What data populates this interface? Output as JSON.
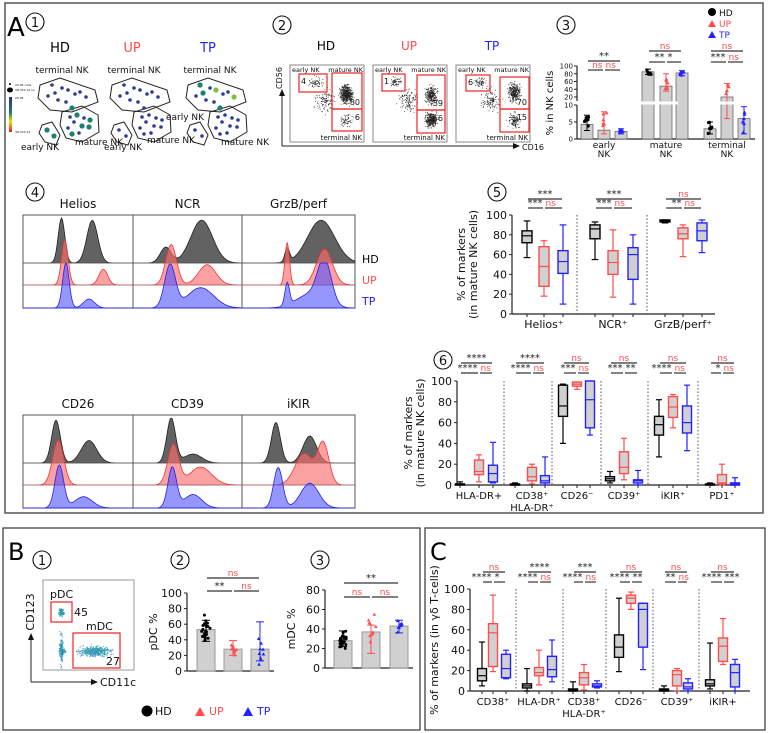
{
  "figure": {
    "panel_labels": {
      "A": "A",
      "B": "B",
      "C": "C"
    },
    "sub": {
      "1": "1",
      "2": "2",
      "3": "3",
      "4": "4",
      "5": "5",
      "6": "6"
    },
    "groups": [
      {
        "name": "HD",
        "color": "#000000"
      },
      {
        "name": "UP",
        "color": "#ff4d4d"
      },
      {
        "name": "TP",
        "color": "#2222ff"
      }
    ],
    "ns_color": "#ff4d4d"
  },
  "a1": {
    "titles": [
      "HD",
      "UP",
      "TP"
    ],
    "clusters": {
      "terminal": "terminal NK",
      "mature": "mature NK",
      "early": "early NK"
    },
    "legend": {
      "size_min": "20.95 cells",
      "size_max": "38,333.14 ns",
      "color_min": "20.95",
      "color_max": "38,333.14"
    }
  },
  "a2": {
    "titles": [
      "HD",
      "UP",
      "TP"
    ],
    "x_axis": "CD16",
    "y_axis": "CD56",
    "gate_labels": {
      "early": "early NK",
      "mature": "mature NK",
      "terminal": "terminal NK"
    },
    "gates": [
      {
        "early": "4",
        "mature": "80",
        "terminal": "6"
      },
      {
        "early": "1",
        "mature": "39",
        "terminal": "56"
      },
      {
        "early": "6",
        "mature": "70",
        "terminal": "15"
      }
    ]
  },
  "a4": {
    "top_markers": [
      "Helios",
      "NCR",
      "GrzB/perf"
    ],
    "bottom_markers": [
      "CD26",
      "CD39",
      "iKIR"
    ],
    "row_labels": [
      "HD",
      "UP",
      "TP"
    ]
  },
  "b1": {
    "y_axis": "CD123",
    "x_axis": "CD11c",
    "gate_pdc": "pDC",
    "gate_pdc_value": "45",
    "gate_mdc": "mDC",
    "gate_mdc_value": "27"
  },
  "b_legend": [
    "HD",
    "UP",
    "TP"
  ],
  "chart_data": [
    {
      "id": "A3",
      "type": "bar",
      "title": "",
      "ylabel": "% in NK cells",
      "legend": [
        "HD",
        "UP",
        "TP"
      ],
      "legend_position": "top-right",
      "y_ticks": [
        0,
        5,
        10,
        20,
        40,
        60,
        80,
        100
      ],
      "y_break": [
        10,
        20
      ],
      "ylim": [
        0,
        100
      ],
      "categories": [
        {
          "label1": "early",
          "label2": "NK",
          "means": [
            4.3,
            2.6,
            2.2
          ],
          "errors": [
            [
              2.5,
              7
            ],
            [
              1.5,
              8
            ],
            [
              1.5,
              3
            ]
          ],
          "sig": {
            "top": "**",
            "left": "ns",
            "right": "ns"
          }
        },
        {
          "label1": "mature",
          "label2": "NK",
          "means": [
            85,
            48,
            82
          ],
          "errors": [
            [
              78,
              92
            ],
            [
              35,
              80
            ],
            [
              75,
              88
            ]
          ],
          "sig": {
            "top": "ns",
            "left": "**",
            "right": "*"
          }
        },
        {
          "label1": "terminal",
          "label2": "NK",
          "means": [
            3,
            20,
            6
          ],
          "errors": [
            [
              1.5,
              5
            ],
            [
              6,
              55
            ],
            [
              1.5,
              9.5
            ]
          ],
          "sig": {
            "top": "ns",
            "left": "***",
            "right": "ns"
          }
        }
      ]
    },
    {
      "id": "A5",
      "type": "box",
      "ylabel": "% of markers",
      "ylabel2": "(in mature NK cells)",
      "ylim": [
        0,
        100
      ],
      "y_ticks": [
        0,
        20,
        40,
        60,
        80,
        100
      ],
      "categories": [
        {
          "label": "Helios⁺",
          "boxes": [
            [
              57,
              72,
              79,
              84,
              94
            ],
            [
              18,
              28,
              48,
              68,
              74
            ],
            [
              10,
              41,
              53,
              64,
              90
            ]
          ],
          "sig": {
            "top": "***",
            "left": "***",
            "right": "ns"
          }
        },
        {
          "label": "NCR⁺",
          "boxes": [
            [
              55,
              76,
              86,
              90,
              93
            ],
            [
              17,
              40,
              52,
              64,
              85
            ],
            [
              10,
              35,
              60,
              67,
              80
            ]
          ],
          "sig": {
            "top": "***",
            "left": "***",
            "right": "ns"
          }
        },
        {
          "label": "GrzB/perf⁺",
          "boxes": [
            [
              92,
              93,
              94,
              95,
              95
            ],
            [
              58,
              76,
              81,
              87,
              90
            ],
            [
              62,
              74,
              84,
              92,
              95
            ]
          ],
          "sig": {
            "top": "ns",
            "left": "**",
            "right": "ns"
          }
        }
      ]
    },
    {
      "id": "A6",
      "type": "box",
      "ylabel": "% of markers",
      "ylabel2": "(in mature NK cells)",
      "ylim": [
        0,
        100
      ],
      "y_ticks": [
        0,
        20,
        40,
        60,
        80,
        100
      ],
      "categories": [
        {
          "label": "HLA-DR+",
          "label2": "",
          "boxes": [
            [
              0,
              0,
              1,
              1,
              3
            ],
            [
              3,
              10,
              13,
              24,
              29
            ],
            [
              2,
              3,
              11,
              19,
              41
            ]
          ],
          "sig": {
            "top": "****",
            "left": "****",
            "right": "ns"
          }
        },
        {
          "label": "CD38⁺",
          "label2": "HLA-DR⁺",
          "boxes": [
            [
              0,
              0,
              0,
              1,
              2
            ],
            [
              1,
              4,
              8,
              17,
              20
            ],
            [
              0,
              2,
              4,
              9,
              27
            ]
          ],
          "sig": {
            "top": "****",
            "left": "****",
            "right": "ns"
          }
        },
        {
          "label": "CD26⁻",
          "label2": "",
          "boxes": [
            [
              40,
              66,
              76,
              96,
              97
            ],
            [
              92,
              95,
              97,
              99,
              99
            ],
            [
              48,
              55,
              82,
              100,
              100
            ]
          ],
          "sig": {
            "top": "ns",
            "left": "***",
            "right": "ns"
          }
        },
        {
          "label": "CD39⁺",
          "label2": "",
          "boxes": [
            [
              2,
              4,
              6,
              8,
              13
            ],
            [
              5,
              11,
              17,
              32,
              45
            ],
            [
              0,
              2,
              4,
              5,
              14
            ]
          ],
          "sig": {
            "top": "ns",
            "left": "***",
            "right": "**"
          }
        },
        {
          "label": "iKIR⁺",
          "label2": "",
          "boxes": [
            [
              27,
              48,
              58,
              66,
              82
            ],
            [
              55,
              65,
              75,
              85,
              87
            ],
            [
              33,
              50,
              60,
              76,
              96
            ]
          ],
          "sig": {
            "top": "ns",
            "left": "****",
            "right": "ns"
          }
        },
        {
          "label": "PD1⁺",
          "label2": "",
          "boxes": [
            [
              0,
              0,
              0,
              1,
              2
            ],
            [
              0,
              1,
              2,
              10,
              20
            ],
            [
              0,
              0,
              1,
              2,
              7
            ]
          ],
          "sig": {
            "top": "ns",
            "left": "*",
            "right": "ns"
          }
        }
      ]
    },
    {
      "id": "B2",
      "type": "bar",
      "ylabel": "pDC %",
      "ylim": [
        0,
        100
      ],
      "y_ticks": [
        0,
        20,
        40,
        60,
        80,
        100
      ],
      "means": [
        53,
        28,
        28
      ],
      "errors": [
        [
          38,
          65
        ],
        [
          20,
          39
        ],
        [
          13,
          63
        ]
      ],
      "sig": {
        "top": "ns",
        "left": "**",
        "right": "ns"
      }
    },
    {
      "id": "B3",
      "type": "bar",
      "ylabel": "mDC %",
      "ylim": [
        0,
        80
      ],
      "y_ticks": [
        0,
        20,
        40,
        60,
        80
      ],
      "means": [
        28,
        37,
        43
      ],
      "errors": [
        [
          22,
          38
        ],
        [
          15,
          44
        ],
        [
          36,
          49
        ]
      ],
      "sig": {
        "top": "**",
        "left": "ns",
        "right": "ns"
      }
    },
    {
      "id": "C",
      "type": "box",
      "ylabel": "% of markers (in γδ T-cells)",
      "ylim": [
        0,
        100
      ],
      "y_ticks": [
        0,
        20,
        40,
        60,
        80,
        100
      ],
      "categories": [
        {
          "label": "CD38⁺",
          "label2": "",
          "boxes": [
            [
              5,
              10,
              15,
              22,
              48
            ],
            [
              19,
              24,
              57,
              66,
              94
            ],
            [
              12,
              13,
              22,
              36,
              40
            ]
          ],
          "sig": {
            "top": "ns",
            "left": "****",
            "right": "*"
          }
        },
        {
          "label": "HLA-DR⁺",
          "label2": "",
          "boxes": [
            [
              0,
              3,
              5,
              7,
              22
            ],
            [
              6,
              15,
              18,
              23,
              40
            ],
            [
              9,
              14,
              21,
              34,
              50
            ]
          ],
          "sig": {
            "top": "****",
            "left": "****",
            "right": "ns"
          }
        },
        {
          "label": "CD38⁺",
          "label2": "HLA-DR⁺",
          "boxes": [
            [
              0,
              0,
              1,
              2,
              9
            ],
            [
              1,
              6,
              13,
              18,
              26
            ],
            [
              3,
              4,
              5,
              7,
              10
            ]
          ],
          "sig": {
            "top": "***",
            "left": "****",
            "right": "ns"
          }
        },
        {
          "label": "CD26⁻",
          "label2": "",
          "boxes": [
            [
              19,
              33,
              43,
              55,
              91
            ],
            [
              80,
              86,
              91,
              94,
              97
            ],
            [
              21,
              43,
              80,
              86,
              86
            ]
          ],
          "sig": {
            "top": "ns",
            "left": "****",
            "right": "**"
          }
        },
        {
          "label": "CD39⁺",
          "label2": "",
          "boxes": [
            [
              0,
              0,
              1,
              2,
              5
            ],
            [
              0,
              5,
              16,
              20,
              22
            ],
            [
              0,
              2,
              4,
              8,
              12
            ]
          ],
          "sig": {
            "top": "ns",
            "left": "**",
            "right": "ns"
          }
        },
        {
          "label": "iKIR+",
          "label2": "",
          "boxes": [
            [
              2,
              5,
              7,
              11,
              47
            ],
            [
              26,
              29,
              44,
              52,
              71
            ],
            [
              0,
              4,
              18,
              26,
              31
            ]
          ],
          "sig": {
            "top": "ns",
            "left": "****",
            "right": "***"
          }
        }
      ]
    }
  ]
}
